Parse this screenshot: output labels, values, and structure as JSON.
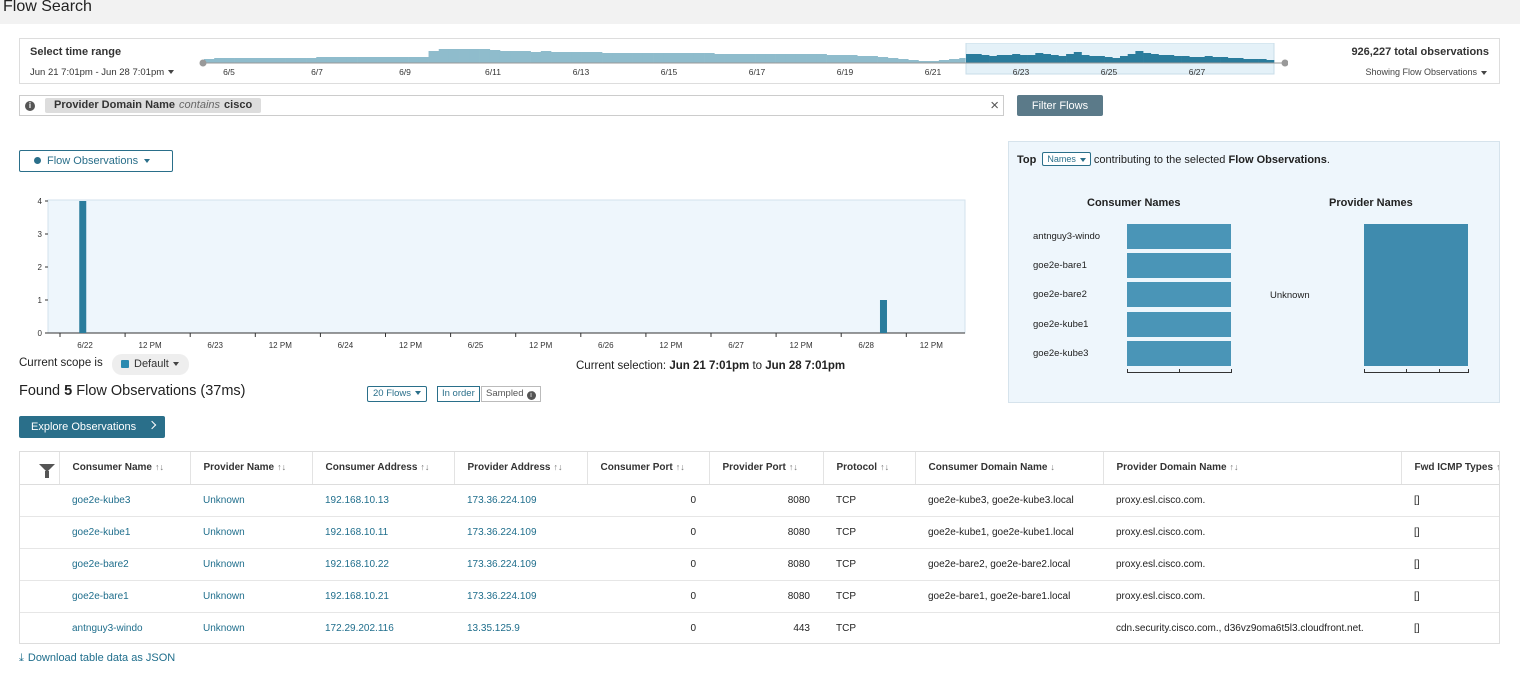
{
  "page_title": "Flow Search",
  "time_range": {
    "label": "Select time range",
    "value": "Jun 21 7:01pm - Jun 28 7:01pm",
    "total": "926,227 total observations",
    "showing": "Showing Flow Observations",
    "timeline_ticks": [
      "6/5",
      "6/7",
      "6/9",
      "6/11",
      "6/13",
      "6/15",
      "6/17",
      "6/19",
      "6/21",
      "6/23",
      "6/25",
      "6/27"
    ]
  },
  "filter": {
    "key": "Provider Domain Name",
    "op": "contains",
    "value": "cisco",
    "button": "Filter Flows"
  },
  "metric_dropdown": "Flow Observations",
  "chart_data": {
    "type": "bar",
    "x_tick_labels": [
      "6/22",
      "12 PM",
      "6/23",
      "12 PM",
      "6/24",
      "12 PM",
      "6/25",
      "12 PM",
      "6/26",
      "12 PM",
      "6/27",
      "12 PM",
      "6/28",
      "12 PM"
    ],
    "y_ticks": [
      0,
      1,
      2,
      3,
      4
    ],
    "ylim": [
      0,
      4
    ],
    "bars": [
      {
        "x_index": 0.05,
        "value": 4
      },
      {
        "x_index": 12.35,
        "value": 1
      }
    ]
  },
  "scope": {
    "label": "Current scope is",
    "value": "Default"
  },
  "selection": {
    "prefix": "Current selection:",
    "from": "Jun 21 7:01pm",
    "to_word": "to",
    "to": "Jun 28 7:01pm"
  },
  "found": {
    "prefix": "Found",
    "count": "5",
    "suffix": "Flow Observations (37ms)"
  },
  "controls": {
    "flows": "20 Flows",
    "order": "In order",
    "sampled": "Sampled"
  },
  "explore_button": "Explore Observations",
  "top_panel": {
    "top_word": "Top",
    "dropdown": "Names",
    "middle": "contributing to the selected",
    "metric": "Flow Observations",
    "end": ".",
    "consumer_title": "Consumer Names",
    "provider_title": "Provider Names",
    "consumer_names": [
      "antnguy3-windo",
      "goe2e-bare1",
      "goe2e-bare2",
      "goe2e-kube1",
      "goe2e-kube3"
    ],
    "provider_names": [
      "Unknown"
    ]
  },
  "table": {
    "columns": [
      "Consumer Name",
      "Provider Name",
      "Consumer Address",
      "Provider Address",
      "Consumer Port",
      "Provider Port",
      "Protocol",
      "Consumer Domain Name",
      "Provider Domain Name",
      "Fwd ICMP Types"
    ],
    "sort_marks": [
      "↑↓",
      "↑↓",
      "↑↓",
      "↑↓",
      "↑↓",
      "↑↓",
      "↑↓",
      "↓",
      "↑↓",
      "↑"
    ],
    "rows": [
      [
        "goe2e-kube3",
        "Unknown",
        "192.168.10.13",
        "173.36.224.109",
        "0",
        "8080",
        "TCP",
        "goe2e-kube3, goe2e-kube3.local",
        "proxy.esl.cisco.com.",
        "[]"
      ],
      [
        "goe2e-kube1",
        "Unknown",
        "192.168.10.11",
        "173.36.224.109",
        "0",
        "8080",
        "TCP",
        "goe2e-kube1, goe2e-kube1.local",
        "proxy.esl.cisco.com.",
        "[]"
      ],
      [
        "goe2e-bare2",
        "Unknown",
        "192.168.10.22",
        "173.36.224.109",
        "0",
        "8080",
        "TCP",
        "goe2e-bare2, goe2e-bare2.local",
        "proxy.esl.cisco.com.",
        "[]"
      ],
      [
        "goe2e-bare1",
        "Unknown",
        "192.168.10.21",
        "173.36.224.109",
        "0",
        "8080",
        "TCP",
        "goe2e-bare1, goe2e-bare1.local",
        "proxy.esl.cisco.com.",
        "[]"
      ],
      [
        "antnguy3-windo",
        "Unknown",
        "172.29.202.116",
        "13.35.125.9",
        "0",
        "443",
        "TCP",
        "",
        "cdn.security.cisco.com., d36vz9oma6t5l3.cloudfront.net.",
        "[]"
      ]
    ]
  },
  "download": "Download table data as JSON",
  "colors": {
    "accent": "#2a6f8a",
    "bar": "#2a7c9c",
    "chart_bg": "#eef6fc"
  }
}
